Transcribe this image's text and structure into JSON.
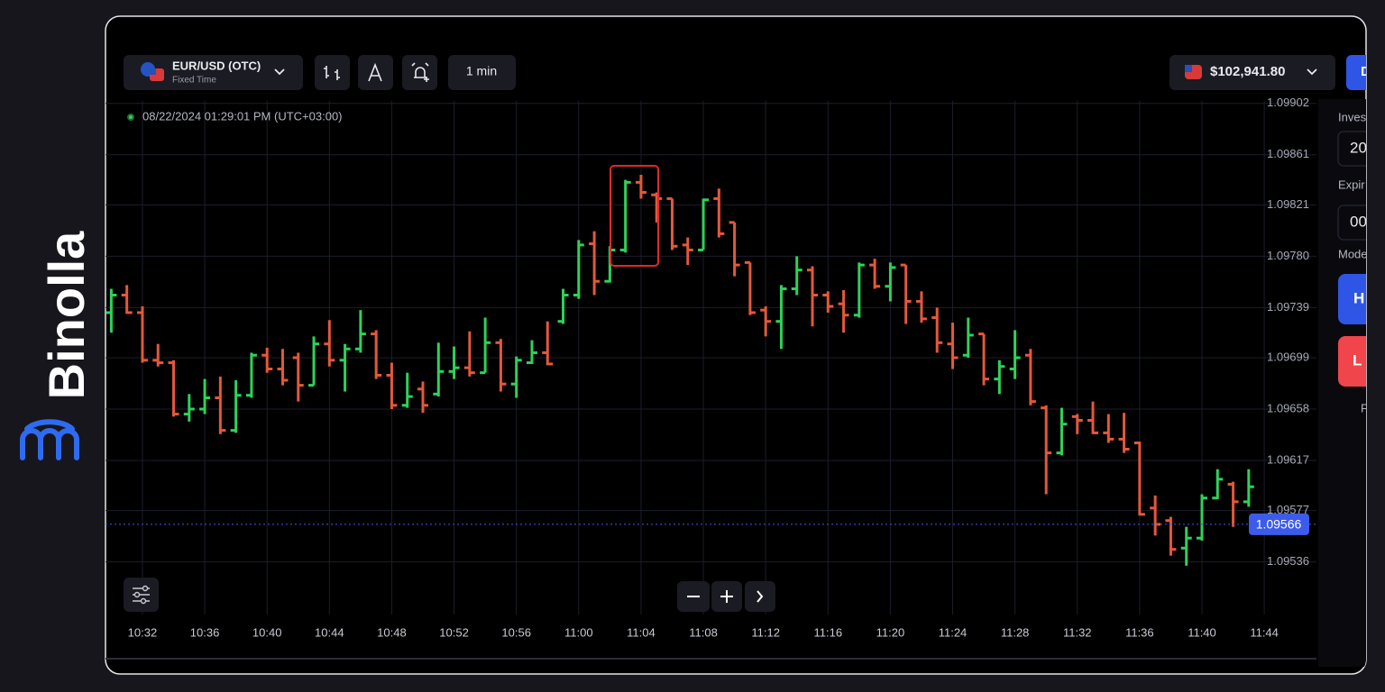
{
  "app": {
    "brand": "Binolla"
  },
  "toolbar": {
    "asset": "EUR/USD (OTC)",
    "asset_type": "Fixed Time",
    "timeframe": "1 min",
    "balance": "$102,941.80",
    "button": "D"
  },
  "side_panel": {
    "investment_label": "Inves",
    "investment_value": "20",
    "expiration_label": "Expir",
    "expiration_value": "00",
    "mode_label": "Mode",
    "higher_button": "H",
    "lower_button": "L",
    "footer": "F"
  },
  "chart_data": {
    "type": "ohlc",
    "timestamp": "08/22/2024 01:29:01 PM (UTC+03:00)",
    "x": [
      "10:30",
      "10:31",
      "10:32",
      "10:33",
      "10:34",
      "10:35",
      "10:36",
      "10:37",
      "10:38",
      "10:39",
      "10:40",
      "10:41",
      "10:42",
      "10:43",
      "10:44",
      "10:45",
      "10:46",
      "10:47",
      "10:48",
      "10:49",
      "10:50",
      "10:51",
      "10:52",
      "10:53",
      "10:54",
      "10:55",
      "10:56",
      "10:57",
      "10:58",
      "10:59",
      "11:00",
      "11:01",
      "11:02",
      "11:03",
      "11:04",
      "11:05",
      "11:06",
      "11:07",
      "11:08",
      "11:09",
      "11:10",
      "11:11",
      "11:12",
      "11:13",
      "11:14",
      "11:15",
      "11:16",
      "11:17",
      "11:18",
      "11:19",
      "11:20",
      "11:21",
      "11:22",
      "11:23",
      "11:24",
      "11:25",
      "11:26",
      "11:27",
      "11:28",
      "11:29",
      "11:30",
      "11:31",
      "11:32",
      "11:33",
      "11:34",
      "11:35",
      "11:36",
      "11:37",
      "11:38",
      "11:39",
      "11:40",
      "11:41",
      "11:42",
      "11:43"
    ],
    "open": [
      1.09735,
      1.09749,
      1.09735,
      1.09697,
      1.09695,
      1.09654,
      1.09658,
      1.09667,
      1.09641,
      1.09669,
      1.09701,
      1.0969,
      1.09699,
      1.09677,
      1.0971,
      1.09697,
      1.09706,
      1.09718,
      1.09685,
      1.09661,
      1.09674,
      1.0967,
      1.09688,
      1.09691,
      1.09687,
      1.09711,
      1.09678,
      1.09695,
      1.09703,
      1.09728,
      1.09749,
      1.0979,
      1.0976,
      1.09785,
      1.09839,
      1.09829,
      1.09826,
      1.09789,
      1.09785,
      1.09826,
      1.09807,
      1.09775,
      1.09737,
      1.09728,
      1.09754,
      1.09769,
      1.09749,
      1.09742,
      1.09733,
      1.09773,
      1.09756,
      1.09773,
      1.09744,
      1.09731,
      1.0971,
      1.09701,
      1.09718,
      1.09682,
      1.0969,
      1.09701,
      1.09659,
      1.09623,
      1.09652,
      1.09649,
      1.09639,
      1.09634,
      1.09631,
      1.09579,
      1.09569,
      1.09547,
      1.09555,
      1.09587,
      1.09598,
      1.09584
    ],
    "high": [
      1.09754,
      1.09757,
      1.0974,
      1.0971,
      1.09697,
      1.0967,
      1.09682,
      1.09684,
      1.09681,
      1.09703,
      1.09707,
      1.09706,
      1.09703,
      1.09716,
      1.09729,
      1.0971,
      1.09737,
      1.09721,
      1.09695,
      1.09687,
      1.0968,
      1.09711,
      1.09708,
      1.0972,
      1.09731,
      1.09714,
      1.097,
      1.09713,
      1.09728,
      1.09754,
      1.09793,
      1.098,
      1.09788,
      1.09841,
      1.09845,
      1.09831,
      1.09826,
      1.09795,
      1.09826,
      1.09834,
      1.09807,
      1.09775,
      1.0974,
      1.09757,
      1.0978,
      1.09772,
      1.09752,
      1.09753,
      1.09775,
      1.09778,
      1.09775,
      1.09773,
      1.09752,
      1.09739,
      1.09727,
      1.09731,
      1.09718,
      1.09697,
      1.09721,
      1.09706,
      1.09661,
      1.09659,
      1.09654,
      1.09664,
      1.09654,
      1.09655,
      1.09632,
      1.09589,
      1.09572,
      1.09564,
      1.0959,
      1.0961,
      1.096,
      1.0961
    ],
    "low": [
      1.09719,
      1.09734,
      1.09695,
      1.09692,
      1.09652,
      1.09648,
      1.09654,
      1.09638,
      1.09639,
      1.09667,
      1.09687,
      1.09677,
      1.09664,
      1.09677,
      1.09692,
      1.09672,
      1.09703,
      1.09682,
      1.09658,
      1.09659,
      1.09655,
      1.09668,
      1.09682,
      1.09684,
      1.09687,
      1.09672,
      1.09667,
      1.09694,
      1.09693,
      1.09726,
      1.09746,
      1.09749,
      1.09759,
      1.09783,
      1.09826,
      1.09807,
      1.09785,
      1.09773,
      1.09785,
      1.09795,
      1.09764,
      1.09733,
      1.09716,
      1.09706,
      1.09749,
      1.09724,
      1.09735,
      1.09719,
      1.09731,
      1.09754,
      1.09744,
      1.09726,
      1.09727,
      1.09703,
      1.0969,
      1.09699,
      1.09677,
      1.0967,
      1.09682,
      1.09661,
      1.0959,
      1.09621,
      1.09638,
      1.09638,
      1.09631,
      1.09623,
      1.09573,
      1.09557,
      1.09541,
      1.09533,
      1.09553,
      1.09586,
      1.09564,
      1.0958
    ],
    "close": [
      1.09749,
      1.09735,
      1.09697,
      1.09695,
      1.09654,
      1.09658,
      1.09667,
      1.09641,
      1.09669,
      1.09701,
      1.0969,
      1.09681,
      1.09677,
      1.0971,
      1.09697,
      1.09706,
      1.09718,
      1.09685,
      1.09661,
      1.09668,
      1.09661,
      1.09688,
      1.09691,
      1.09687,
      1.09711,
      1.09678,
      1.09697,
      1.09703,
      1.09694,
      1.09749,
      1.09789,
      1.0976,
      1.09785,
      1.09839,
      1.09831,
      1.09826,
      1.09788,
      1.09785,
      1.09825,
      1.09798,
      1.09773,
      1.09735,
      1.09728,
      1.09754,
      1.09769,
      1.09749,
      1.0974,
      1.09733,
      1.09773,
      1.09756,
      1.09771,
      1.09744,
      1.0973,
      1.09711,
      1.09699,
      1.09717,
      1.09682,
      1.09692,
      1.09699,
      1.09664,
      1.09623,
      1.09646,
      1.09649,
      1.09639,
      1.09634,
      1.09626,
      1.09574,
      1.09566,
      1.09546,
      1.09555,
      1.09587,
      1.09602,
      1.09584,
      1.09596
    ],
    "up_color": "#2fd15a",
    "down_color": "#e4583b",
    "ylim": [
      1.09494,
      1.09904
    ],
    "yticks": [
      1.09902,
      1.09861,
      1.09821,
      {
        "value": 1.0978,
        "label": "1.09780"
      },
      1.09739,
      1.09699,
      1.09658,
      1.09617,
      1.09577,
      1.09536
    ],
    "xticks": [
      "10:32",
      "10:36",
      "10:40",
      "10:44",
      "10:48",
      "10:52",
      "10:56",
      "11:00",
      "11:04",
      "11:08",
      "11:12",
      "11:16",
      "11:20",
      "11:24",
      "11:28",
      "11:32",
      "11:36",
      "11:40",
      "11:44"
    ],
    "current_price": 1.09566,
    "current_price_color": "#3d5bea",
    "grid": true
  }
}
